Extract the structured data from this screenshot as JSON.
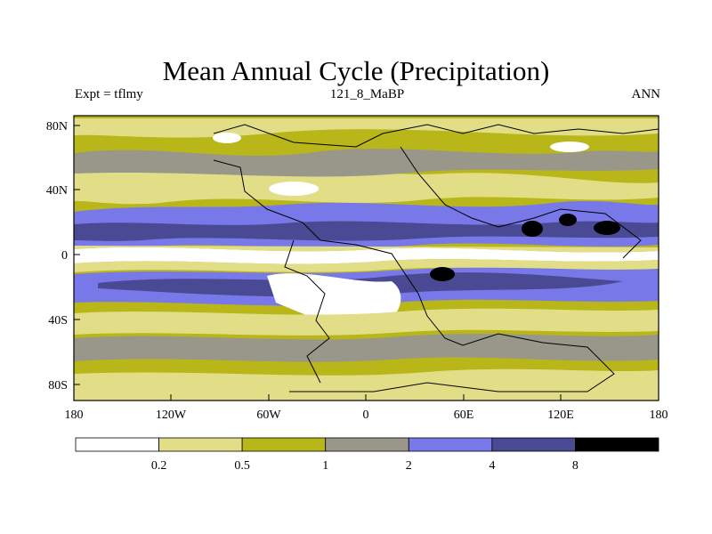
{
  "title": "Mean Annual Cycle (Precipitation)",
  "left_label": "Expt = tflmy",
  "center_label": "121_8_MaBP",
  "right_label": "ANN",
  "lat_ticks": [
    "80N",
    "40N",
    "0",
    "40S",
    "80S"
  ],
  "lon_ticks": [
    "180",
    "120W",
    "60W",
    "0",
    "60E",
    "120E",
    "180"
  ],
  "colorbar": {
    "levels": [
      "0.2",
      "0.5",
      "1",
      "2",
      "4",
      "8"
    ],
    "colors": [
      "#ffffff",
      "#e2de88",
      "#b8b619",
      "#99978a",
      "#7878e8",
      "#4a4a94",
      "#000000"
    ]
  }
}
